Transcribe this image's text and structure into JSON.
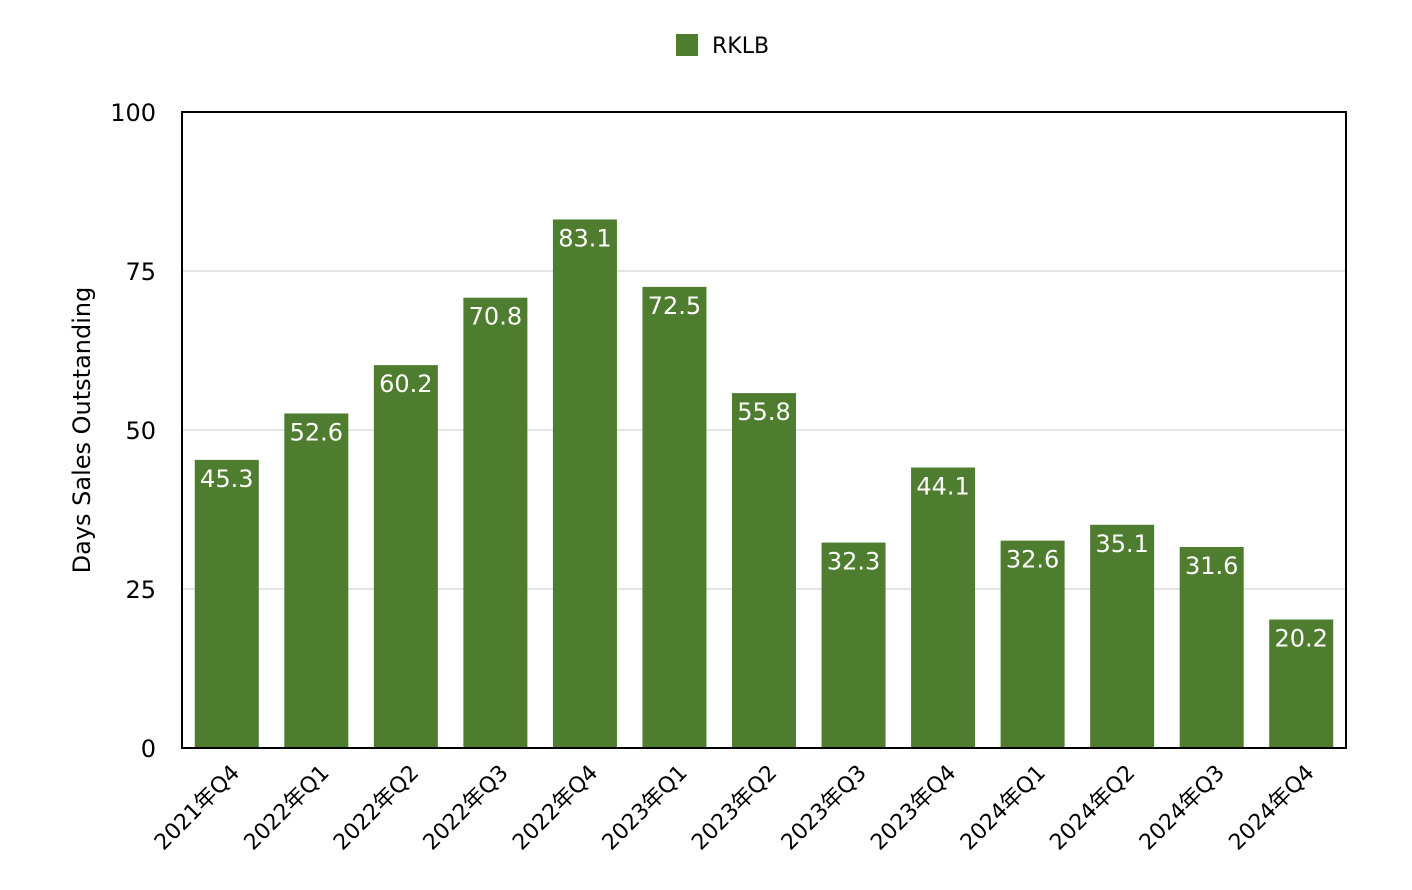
{
  "chart_data": {
    "type": "bar",
    "categories": [
      "2021年Q4",
      "2022年Q1",
      "2022年Q2",
      "2022年Q3",
      "2022年Q4",
      "2023年Q1",
      "2023年Q2",
      "2023年Q3",
      "2023年Q4",
      "2024年Q1",
      "2024年Q2",
      "2024年Q3",
      "2024年Q4"
    ],
    "series": [
      {
        "name": "RKLB",
        "values": [
          45.3,
          52.6,
          60.2,
          70.8,
          83.1,
          72.5,
          55.8,
          32.3,
          44.1,
          32.6,
          35.1,
          31.6,
          20.2
        ],
        "color": "#4f7d2f"
      }
    ],
    "data_labels": [
      "45.3",
      "52.6",
      "60.2",
      "70.8",
      "83.1",
      "72.5",
      "55.8",
      "32.3",
      "44.1",
      "32.6",
      "35.1",
      "31.6",
      "20.2"
    ],
    "title": "",
    "xlabel": "",
    "ylabel": "Days Sales Outstanding",
    "ylim": [
      0,
      100
    ],
    "yticks": [
      0,
      25,
      50,
      75,
      100
    ],
    "ytick_labels": [
      "0",
      "25",
      "50",
      "75",
      "100"
    ],
    "grid": true,
    "legend": "top-center"
  }
}
